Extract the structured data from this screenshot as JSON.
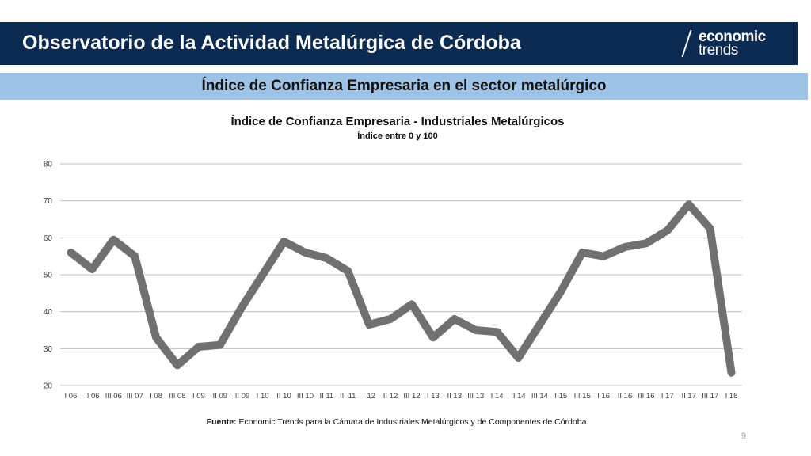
{
  "header": {
    "title": "Observatorio de la Actividad Metalúrgica de Córdoba",
    "logo_line1": "economic",
    "logo_line2": "trends"
  },
  "section": {
    "title": "Índice de Confianza Empresaria en el sector metalúrgico"
  },
  "footer": {
    "source_label": "Fuente:",
    "source_text": " Economic Trends para la Cámara de Industriales Metalúrgicos y de Componentes de Córdoba.",
    "page_number": "9"
  },
  "colors": {
    "header_bg": "#0c2b52",
    "subheader_bg": "#9dc3e6",
    "line": "#707070",
    "grid": "#bfbfbf"
  },
  "chart_data": {
    "type": "line",
    "title": "Índice de Confianza Empresaria - Industriales Metalúrgicos",
    "subtitle": "Índice entre 0 y 100",
    "xlabel": "",
    "ylabel": "",
    "ylim": [
      20,
      80
    ],
    "yticks": [
      20,
      30,
      40,
      50,
      60,
      70,
      80
    ],
    "grid": true,
    "legend": "none",
    "categories": [
      "I 06",
      "II 06",
      "III 06",
      "III 07",
      "I 08",
      "III 08",
      "I 09",
      "II 09",
      "III 09",
      "I 10",
      "II 10",
      "III 10",
      "II 11",
      "III 11",
      "I 12",
      "II 12",
      "III 12",
      "I 13",
      "II 13",
      "III 13",
      "I 14",
      "II 14",
      "III 14",
      "I 15",
      "III 15",
      "I 16",
      "II 16",
      "III 16",
      "I 17",
      "II 17",
      "III 17",
      "I 18"
    ],
    "series": [
      {
        "values": [
          56,
          51.5,
          59.5,
          55,
          33,
          25.5,
          30.5,
          31,
          41,
          50,
          59,
          56,
          54.5,
          51,
          36.5,
          38,
          42,
          33,
          38,
          35,
          34.5,
          27.5,
          36.5,
          45.5,
          56,
          55,
          57.5,
          58.5,
          62,
          69,
          62.5,
          23.5
        ]
      }
    ]
  }
}
